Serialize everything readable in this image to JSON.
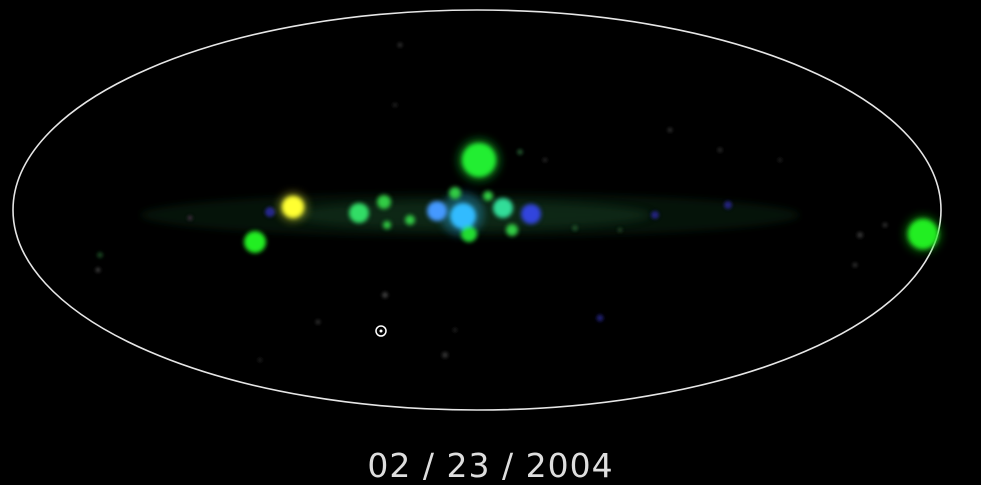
{
  "date": "02 / 23 / 2004",
  "colors": {
    "background": "#000000",
    "outline": "#e6e6e6",
    "caption": "#dedede"
  },
  "sources": [
    {
      "name": "source-green-large-north",
      "color": "#22ee33"
    },
    {
      "name": "source-yellow",
      "color": "#ffff33"
    },
    {
      "name": "source-green-west",
      "color": "#22ee22"
    },
    {
      "name": "source-green-center-1",
      "color": "#33dd66"
    },
    {
      "name": "source-green-center-2",
      "color": "#33cc44"
    },
    {
      "name": "source-cyan-center",
      "color": "#33bbff"
    },
    {
      "name": "source-light-blue-center",
      "color": "#4499ff"
    },
    {
      "name": "source-teal-center",
      "color": "#33dd99"
    },
    {
      "name": "source-blue-center-east",
      "color": "#3344dd"
    },
    {
      "name": "source-green-south-center",
      "color": "#22dd33"
    },
    {
      "name": "source-green-east-edge",
      "color": "#22ee22"
    },
    {
      "name": "source-white-marker",
      "color": "#ffffff"
    }
  ]
}
